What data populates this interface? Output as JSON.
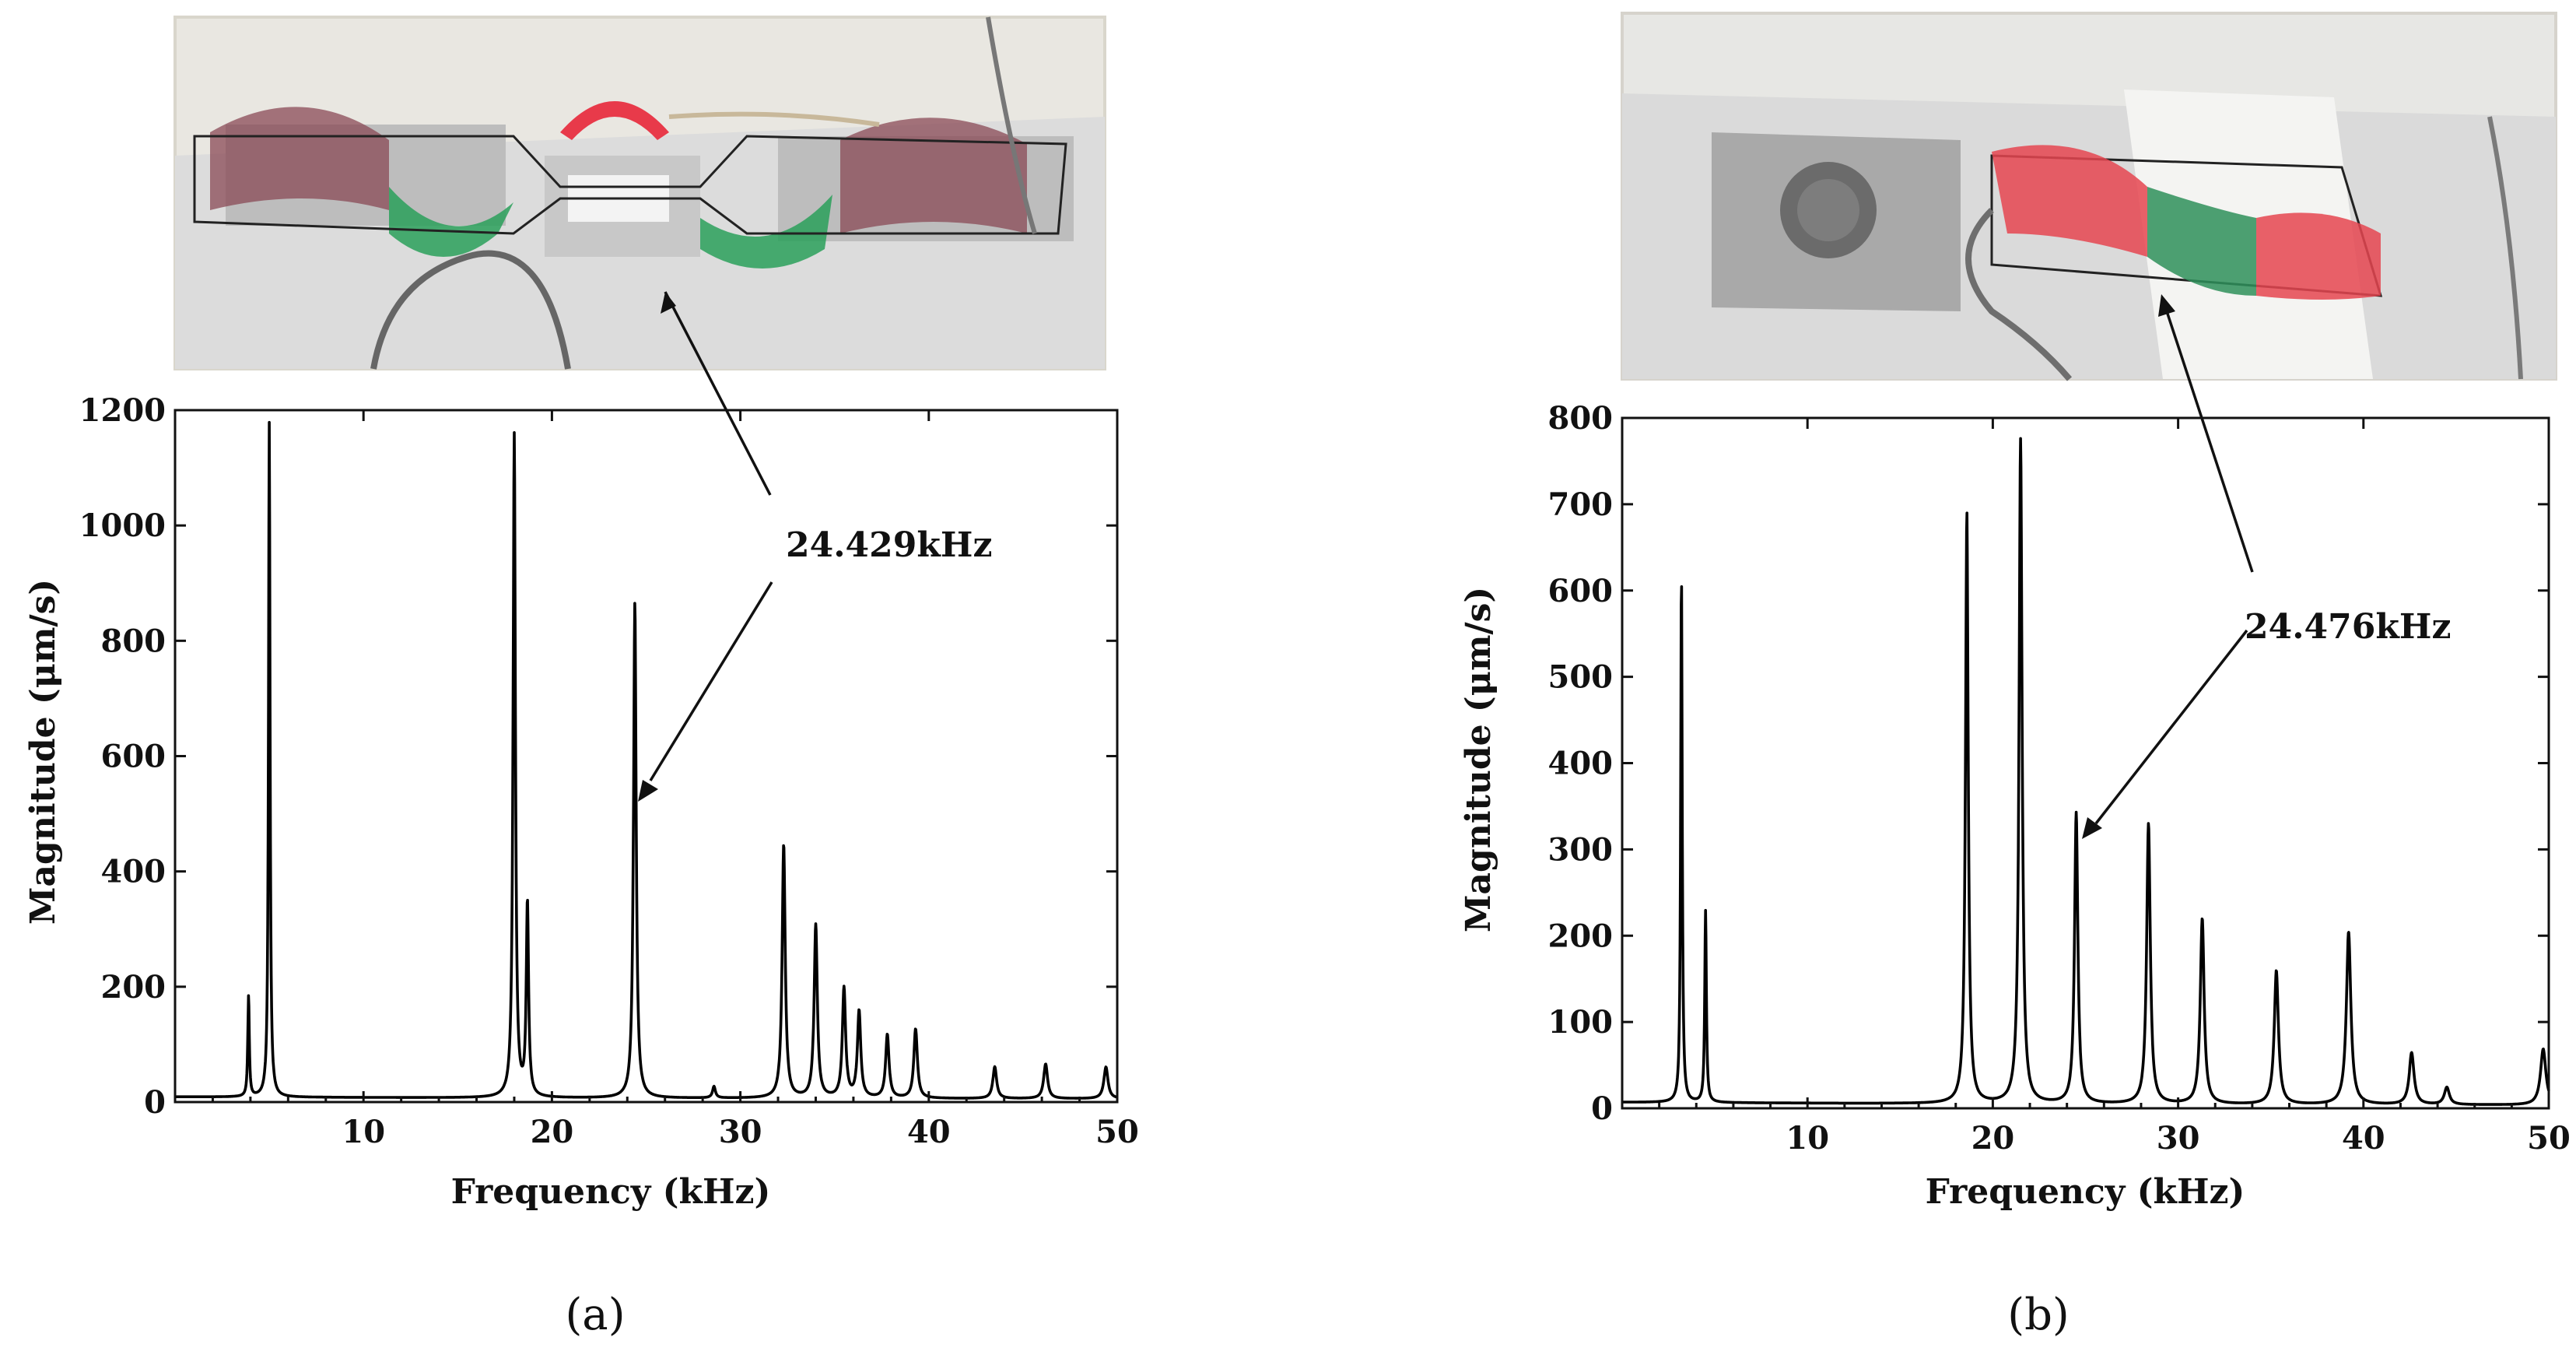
{
  "figure": {
    "panels": [
      {
        "id": "a",
        "caption": "(a)",
        "photo_name": "modal-photo-a"
      },
      {
        "id": "b",
        "caption": "(b)",
        "photo_name": "modal-photo-b"
      }
    ]
  },
  "chart_data": [
    {
      "type": "line",
      "panel": "a",
      "xlabel": "Frequency (kHz)",
      "ylabel": "Magnitude (μm/s)",
      "xlim": [
        0,
        50
      ],
      "ylim": [
        0,
        1200
      ],
      "xticks": [
        10,
        20,
        30,
        40,
        50
      ],
      "yticks": [
        0,
        200,
        400,
        600,
        800,
        1000,
        1200
      ],
      "grid": false,
      "baseline": 5,
      "peaks": [
        {
          "f": 3.9,
          "mag": 175
        },
        {
          "f": 5.0,
          "mag": 1170
        },
        {
          "f": 18.0,
          "mag": 1150
        },
        {
          "f": 18.7,
          "mag": 335
        },
        {
          "f": 24.4,
          "mag": 860
        },
        {
          "f": 28.6,
          "mag": 20
        },
        {
          "f": 32.3,
          "mag": 440
        },
        {
          "f": 34.0,
          "mag": 300
        },
        {
          "f": 35.5,
          "mag": 190
        },
        {
          "f": 36.3,
          "mag": 150
        },
        {
          "f": 37.8,
          "mag": 110
        },
        {
          "f": 39.3,
          "mag": 120
        },
        {
          "f": 43.5,
          "mag": 55
        },
        {
          "f": 46.2,
          "mag": 60
        },
        {
          "f": 49.4,
          "mag": 55
        }
      ],
      "annotation": {
        "text": "24.429kHz",
        "x": 24.429,
        "y": 560
      }
    },
    {
      "type": "line",
      "panel": "b",
      "xlabel": "Frequency (kHz)",
      "ylabel": "Magnitude (μm/s)",
      "xlim": [
        0,
        50
      ],
      "ylim": [
        0,
        800
      ],
      "xticks": [
        10,
        20,
        30,
        40,
        50
      ],
      "yticks": [
        0,
        100,
        200,
        300,
        400,
        500,
        600,
        700,
        800
      ],
      "grid": false,
      "baseline": 3,
      "peaks": [
        {
          "f": 3.2,
          "mag": 615
        },
        {
          "f": 4.5,
          "mag": 222
        },
        {
          "f": 18.6,
          "mag": 685
        },
        {
          "f": 21.5,
          "mag": 770
        },
        {
          "f": 24.5,
          "mag": 337
        },
        {
          "f": 28.4,
          "mag": 325
        },
        {
          "f": 31.3,
          "mag": 215
        },
        {
          "f": 35.3,
          "mag": 155
        },
        {
          "f": 39.2,
          "mag": 200
        },
        {
          "f": 42.6,
          "mag": 60
        },
        {
          "f": 44.5,
          "mag": 20
        },
        {
          "f": 49.7,
          "mag": 65
        }
      ],
      "annotation": {
        "text": "24.476kHz",
        "x": 24.476,
        "y": 318
      }
    }
  ]
}
